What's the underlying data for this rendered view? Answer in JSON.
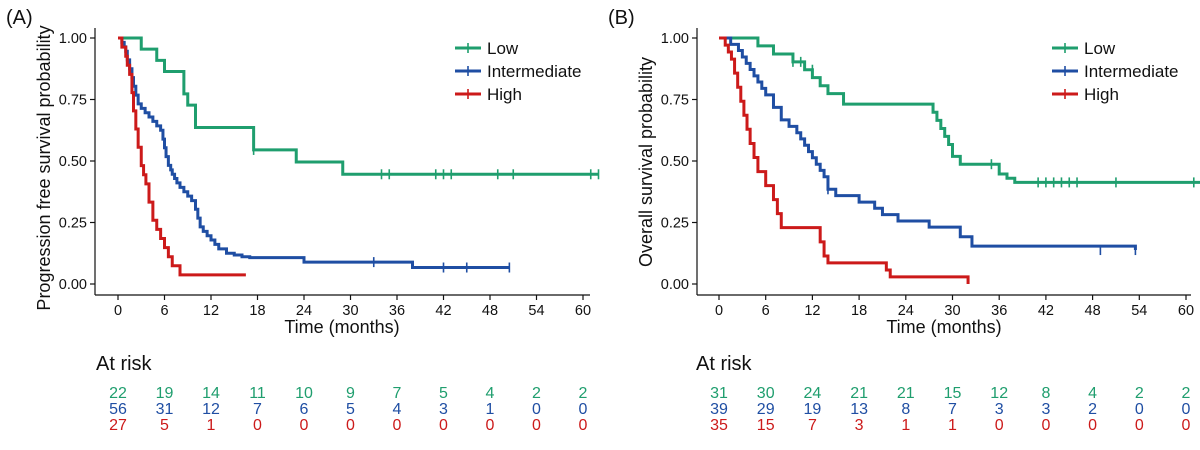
{
  "colors": {
    "low": "#1f9e6e",
    "intermediate": "#1f4ea3",
    "high": "#cc1a1a",
    "axis": "#111111"
  },
  "chart_data": [
    {
      "type": "line",
      "panel_label": "(A)",
      "xlabel": "Time (months)",
      "ylabel": "Progression free survival probability",
      "xlim": [
        0,
        62
      ],
      "ylim": [
        0,
        1
      ],
      "x_ticks": [
        0,
        6,
        12,
        18,
        24,
        30,
        36,
        42,
        48,
        54,
        60
      ],
      "y_ticks": [
        "0.00",
        "0.25",
        "0.50",
        "0.75",
        "1.00"
      ],
      "grid": false,
      "legend_position": "top-right",
      "legend": [
        "Low",
        "Intermediate",
        "High"
      ],
      "series": [
        {
          "name": "Low",
          "color_key": "low",
          "x": [
            0,
            3,
            5,
            6,
            8,
            8.5,
            9,
            10,
            17.5,
            23,
            29,
            62
          ],
          "y": [
            1.0,
            0.955,
            0.909,
            0.864,
            0.864,
            0.773,
            0.727,
            0.636,
            0.545,
            0.496,
            0.446,
            0.446
          ],
          "censor_x": [
            17.5,
            34,
            35,
            41,
            42,
            43,
            49,
            51,
            61,
            62
          ],
          "censor_y": [
            0.545,
            0.446,
            0.446,
            0.446,
            0.446,
            0.446,
            0.446,
            0.446,
            0.446,
            0.446
          ]
        },
        {
          "name": "Intermediate",
          "color_key": "intermediate",
          "x": [
            0,
            0.5,
            0.8,
            1,
            1.2,
            1.5,
            1.8,
            2,
            2.3,
            2.6,
            3,
            3.5,
            4,
            4.5,
            5,
            5.5,
            5.8,
            6,
            6.2,
            6.5,
            6.8,
            7,
            7.3,
            7.6,
            8,
            8.5,
            9,
            9.5,
            10,
            10.3,
            10.6,
            11,
            11.5,
            12,
            12.5,
            13,
            14,
            15,
            16,
            17,
            24,
            38,
            50.5
          ],
          "y": [
            1.0,
            0.982,
            0.964,
            0.946,
            0.911,
            0.875,
            0.839,
            0.804,
            0.768,
            0.732,
            0.714,
            0.696,
            0.679,
            0.661,
            0.643,
            0.625,
            0.589,
            0.554,
            0.518,
            0.482,
            0.464,
            0.446,
            0.429,
            0.411,
            0.393,
            0.375,
            0.357,
            0.339,
            0.304,
            0.268,
            0.232,
            0.214,
            0.196,
            0.179,
            0.161,
            0.143,
            0.125,
            0.118,
            0.111,
            0.107,
            0.089,
            0.067,
            0.067
          ],
          "censor_x": [
            33,
            42,
            45,
            50.5
          ],
          "censor_y": [
            0.089,
            0.067,
            0.067,
            0.067
          ]
        },
        {
          "name": "High",
          "color_key": "high",
          "x": [
            0,
            0.5,
            1,
            1.2,
            1.5,
            1.8,
            2,
            2.3,
            2.6,
            3,
            3.3,
            3.6,
            4,
            4.5,
            5,
            5.5,
            6,
            6.5,
            7,
            8,
            16.5
          ],
          "y": [
            1.0,
            0.963,
            0.926,
            0.889,
            0.852,
            0.778,
            0.704,
            0.63,
            0.556,
            0.481,
            0.444,
            0.407,
            0.333,
            0.259,
            0.222,
            0.185,
            0.148,
            0.111,
            0.074,
            0.037,
            0.037
          ],
          "censor_x": [],
          "censor_y": []
        }
      ],
      "at_risk": {
        "title": "At risk",
        "times": [
          0,
          6,
          12,
          18,
          24,
          30,
          36,
          42,
          48,
          54,
          60
        ],
        "rows": [
          {
            "name": "Low",
            "color_key": "low",
            "values": [
              "22",
              "19",
              "14",
              "11",
              "10",
              "9",
              "7",
              "5",
              "4",
              "2",
              "2"
            ]
          },
          {
            "name": "Intermediate",
            "color_key": "intermediate",
            "values": [
              "56",
              "31",
              "12",
              "7",
              "6",
              "5",
              "4",
              "3",
              "1",
              "0",
              "0"
            ]
          },
          {
            "name": "High",
            "color_key": "high",
            "values": [
              "27",
              "5",
              "1",
              "0",
              "0",
              "0",
              "0",
              "0",
              "0",
              "0",
              "0"
            ]
          }
        ]
      }
    },
    {
      "type": "line",
      "panel_label": "(B)",
      "xlabel": "Time (months)",
      "ylabel": "Overall survival probability",
      "xlim": [
        0,
        62
      ],
      "ylim": [
        0,
        1
      ],
      "x_ticks": [
        0,
        6,
        12,
        18,
        24,
        30,
        36,
        42,
        48,
        54,
        60
      ],
      "y_ticks": [
        "0.00",
        "0.25",
        "0.50",
        "0.75",
        "1.00"
      ],
      "grid": false,
      "legend_position": "top-right",
      "legend": [
        "Low",
        "Intermediate",
        "High"
      ],
      "series": [
        {
          "name": "Low",
          "color_key": "low",
          "x": [
            0,
            5,
            7,
            9.5,
            11,
            12,
            13,
            14,
            16,
            27.5,
            28,
            28.5,
            29,
            29.5,
            30,
            31,
            36,
            37,
            38,
            62
          ],
          "y": [
            1.0,
            0.968,
            0.935,
            0.903,
            0.871,
            0.839,
            0.806,
            0.774,
            0.731,
            0.698,
            0.665,
            0.632,
            0.6,
            0.567,
            0.519,
            0.487,
            0.447,
            0.43,
            0.413,
            0.413
          ],
          "censor_x": [
            9.5,
            10.5,
            12,
            35,
            41,
            42,
            43,
            44,
            45,
            46,
            51,
            61,
            62
          ],
          "censor_y": [
            0.903,
            0.903,
            0.871,
            0.487,
            0.413,
            0.413,
            0.413,
            0.413,
            0.413,
            0.413,
            0.413,
            0.413,
            0.413
          ]
        },
        {
          "name": "Intermediate",
          "color_key": "intermediate",
          "x": [
            0,
            1.5,
            2.5,
            3,
            3.5,
            4,
            4.5,
            5,
            5.5,
            6,
            7,
            8,
            9,
            10,
            10.5,
            11,
            11.5,
            12,
            12.5,
            13,
            13.5,
            14,
            15,
            18,
            20,
            21,
            23,
            27,
            31,
            32.5,
            53.5
          ],
          "y": [
            1.0,
            0.974,
            0.949,
            0.923,
            0.897,
            0.872,
            0.846,
            0.821,
            0.795,
            0.769,
            0.718,
            0.667,
            0.641,
            0.615,
            0.59,
            0.564,
            0.538,
            0.513,
            0.487,
            0.462,
            0.436,
            0.385,
            0.359,
            0.333,
            0.308,
            0.282,
            0.256,
            0.231,
            0.192,
            0.154,
            0.138
          ],
          "censor_x": [
            14,
            49,
            53.5
          ],
          "censor_y": [
            0.385,
            0.138,
            0.138
          ]
        },
        {
          "name": "High",
          "color_key": "high",
          "x": [
            0,
            0.8,
            1.2,
            1.6,
            2,
            2.4,
            2.8,
            3.2,
            3.6,
            4,
            4.5,
            5,
            6,
            7,
            7.5,
            8,
            13,
            13.5,
            14,
            21.5,
            22,
            32
          ],
          "y": [
            1.0,
            0.971,
            0.943,
            0.914,
            0.857,
            0.8,
            0.743,
            0.686,
            0.629,
            0.571,
            0.514,
            0.457,
            0.4,
            0.343,
            0.286,
            0.229,
            0.171,
            0.114,
            0.086,
            0.057,
            0.029,
            0.0
          ],
          "censor_x": [],
          "censor_y": []
        }
      ],
      "at_risk": {
        "title": "At risk",
        "times": [
          0,
          6,
          12,
          18,
          24,
          30,
          36,
          42,
          48,
          54,
          60
        ],
        "rows": [
          {
            "name": "Low",
            "color_key": "low",
            "values": [
              "31",
              "30",
              "24",
              "21",
              "21",
              "15",
              "12",
              "8",
              "4",
              "2",
              "2"
            ]
          },
          {
            "name": "Intermediate",
            "color_key": "intermediate",
            "values": [
              "39",
              "29",
              "19",
              "13",
              "8",
              "7",
              "3",
              "3",
              "2",
              "0",
              "0"
            ]
          },
          {
            "name": "High",
            "color_key": "high",
            "values": [
              "35",
              "15",
              "7",
              "3",
              "1",
              "1",
              "0",
              "0",
              "0",
              "0",
              "0"
            ]
          }
        ]
      }
    }
  ]
}
